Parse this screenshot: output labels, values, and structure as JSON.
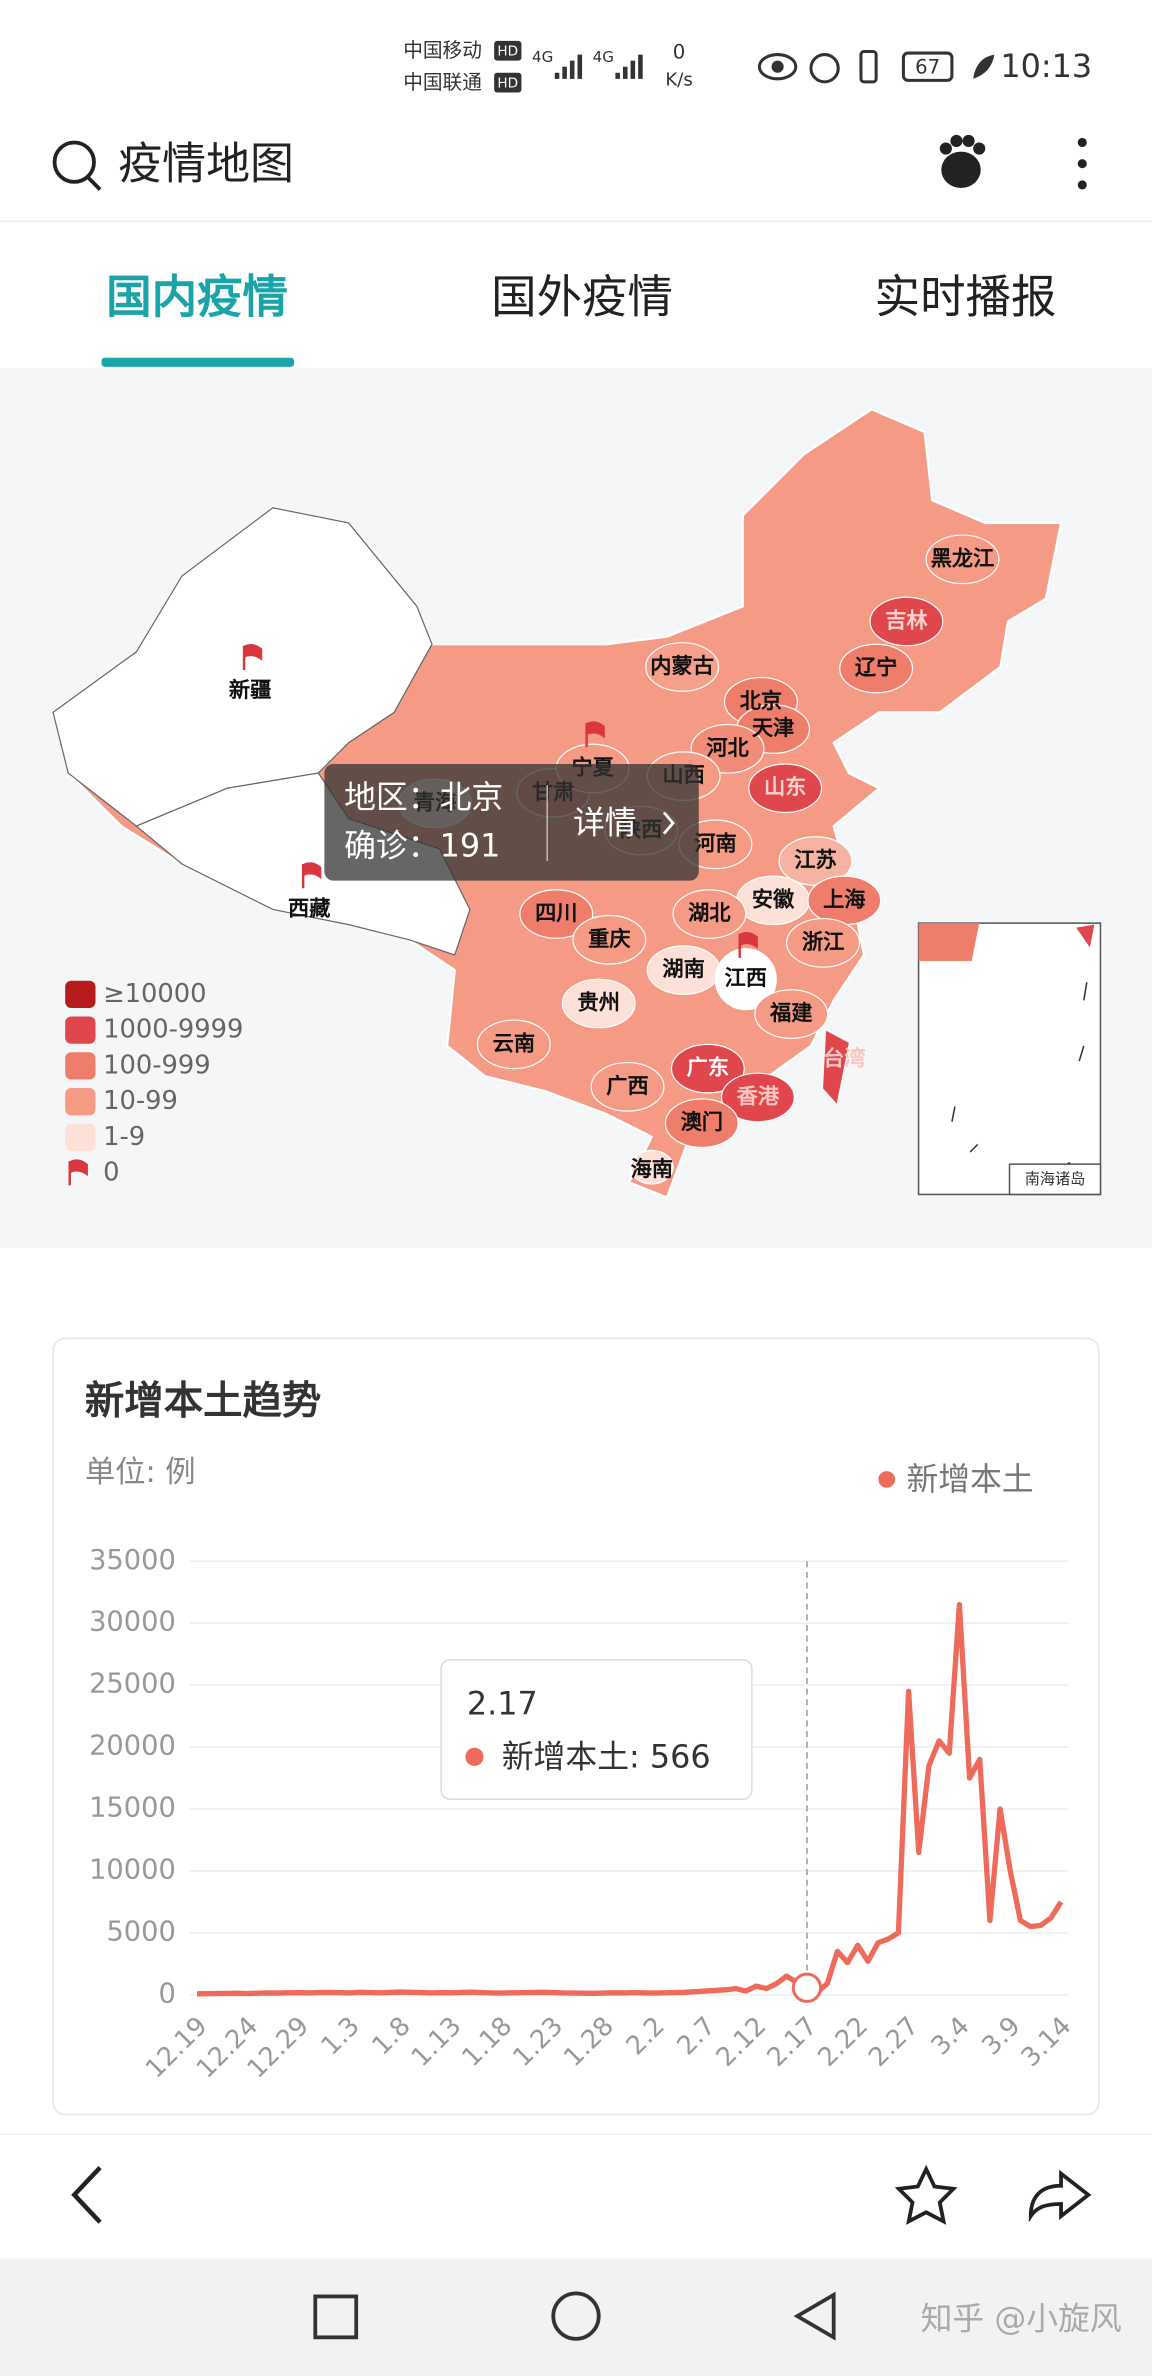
{
  "status_bar": {
    "carrier1": "中国移动",
    "carrier2": "中国联通",
    "hd": "HD",
    "net": "4G",
    "speed": "0",
    "speed_unit": "K/s",
    "battery": "67",
    "time": "10:13"
  },
  "search": {
    "query": "疫情地图"
  },
  "tabs": [
    "国内疫情",
    "国外疫情",
    "实时播报"
  ],
  "map": {
    "regions": [
      {
        "name": "新疆",
        "color": "#ffffff",
        "flag": true
      },
      {
        "name": "西藏",
        "color": "#ffffff",
        "flag": true
      },
      {
        "name": "青海",
        "color": "#fde0d8"
      },
      {
        "name": "甘肃",
        "color": "#f08c78"
      },
      {
        "name": "宁夏",
        "color": "#f49a85",
        "flag": true
      },
      {
        "name": "内蒙古",
        "color": "#f4a08a"
      },
      {
        "name": "黑龙江",
        "color": "#f49a85"
      },
      {
        "name": "吉林",
        "color": "#e0474c"
      },
      {
        "name": "辽宁",
        "color": "#ef7d6c"
      },
      {
        "name": "北京",
        "color": "#ef7d6c"
      },
      {
        "name": "天津",
        "color": "#ef7d6c"
      },
      {
        "name": "河北",
        "color": "#f08c78"
      },
      {
        "name": "山西",
        "color": "#f49a85"
      },
      {
        "name": "陕西",
        "color": "#f49a85"
      },
      {
        "name": "山东",
        "color": "#e0474c"
      },
      {
        "name": "河南",
        "color": "#f49a85"
      },
      {
        "name": "江苏",
        "color": "#f6b3a2"
      },
      {
        "name": "安徽",
        "color": "#fde0d8"
      },
      {
        "name": "上海",
        "color": "#ef7d6c"
      },
      {
        "name": "四川",
        "color": "#ef7d6c"
      },
      {
        "name": "重庆",
        "color": "#f49a85"
      },
      {
        "name": "湖北",
        "color": "#f49a85"
      },
      {
        "name": "浙江",
        "color": "#f49a85"
      },
      {
        "name": "湖南",
        "color": "#fde0d8"
      },
      {
        "name": "江西",
        "color": "#ffffff",
        "flag": true
      },
      {
        "name": "贵州",
        "color": "#fde0d8"
      },
      {
        "name": "福建",
        "color": "#f49a85"
      },
      {
        "name": "云南",
        "color": "#f49a85"
      },
      {
        "name": "广西",
        "color": "#f49a85"
      },
      {
        "name": "广东",
        "color": "#e0474c"
      },
      {
        "name": "香港",
        "color": "#e0474c"
      },
      {
        "name": "台湾",
        "color": "#e0474c"
      },
      {
        "name": "澳门",
        "color": "#ef7d6c"
      },
      {
        "name": "海南",
        "color": "#fde0d8"
      }
    ],
    "tooltip": {
      "region": "地区：北京",
      "confirmed": "确诊：191",
      "detail": "详情"
    },
    "legend": [
      {
        "label": "≥10000",
        "color": "#b71c1c"
      },
      {
        "label": "1000-9999",
        "color": "#e0474c"
      },
      {
        "label": "100-999",
        "color": "#ef7d6c"
      },
      {
        "label": "10-99",
        "color": "#f49a85"
      },
      {
        "label": "1-9",
        "color": "#fde0d8"
      },
      {
        "label": "0",
        "color": "#d9363e",
        "flag": true
      }
    ],
    "inset_label": "南海诸岛"
  },
  "chart_data": {
    "type": "line",
    "title": "新增本土趋势",
    "subtitle": "单位: 例",
    "categories": [
      "12.19",
      null,
      null,
      null,
      null,
      "12.24",
      null,
      null,
      null,
      null,
      "12.29",
      null,
      null,
      null,
      null,
      "1.3",
      null,
      null,
      null,
      null,
      "1.8",
      null,
      null,
      null,
      null,
      "1.13",
      null,
      null,
      null,
      null,
      "1.18",
      null,
      null,
      null,
      null,
      "1.23",
      null,
      null,
      null,
      null,
      "1.28",
      null,
      null,
      null,
      null,
      "2.2",
      null,
      null,
      null,
      null,
      "2.7",
      null,
      null,
      null,
      null,
      "2.12",
      null,
      null,
      null,
      null,
      "2.17",
      null,
      null,
      null,
      null,
      "2.22",
      null,
      null,
      null,
      null,
      "2.27",
      null,
      null,
      null,
      null,
      "3.4",
      null,
      null,
      null,
      null,
      "3.9",
      null,
      null,
      null,
      null,
      "3.14"
    ],
    "series": [
      {
        "name": "新增本土",
        "color": "#ee6a5a",
        "values": [
          80,
          90,
          100,
          110,
          120,
          100,
          130,
          150,
          140,
          160,
          170,
          150,
          180,
          190,
          170,
          150,
          200,
          180,
          160,
          190,
          220,
          200,
          180,
          150,
          170,
          160,
          190,
          210,
          180,
          150,
          140,
          160,
          170,
          190,
          200,
          180,
          150,
          140,
          130,
          120,
          140,
          160,
          150,
          170,
          150,
          140,
          160,
          180,
          200,
          250,
          300,
          350,
          400,
          500,
          300,
          700,
          500,
          900,
          1500,
          1000,
          566,
          200,
          900,
          3500,
          2600,
          4000,
          2700,
          4200,
          4500,
          5000,
          24500,
          11500,
          18500,
          20500,
          19500,
          31500,
          17500,
          19000,
          6000,
          15000,
          10000,
          6000,
          5500,
          5600,
          6200,
          7500
        ]
      }
    ],
    "ylim": [
      0,
      35000
    ],
    "yticks": [
      0,
      5000,
      10000,
      15000,
      20000,
      25000,
      30000,
      35000
    ],
    "grid": true,
    "legend": "top-right",
    "tooltip": {
      "index": 60,
      "date": "2.17",
      "text": "新增本土: 566"
    }
  },
  "footer": {
    "watermark": "知乎 @小旋风"
  }
}
